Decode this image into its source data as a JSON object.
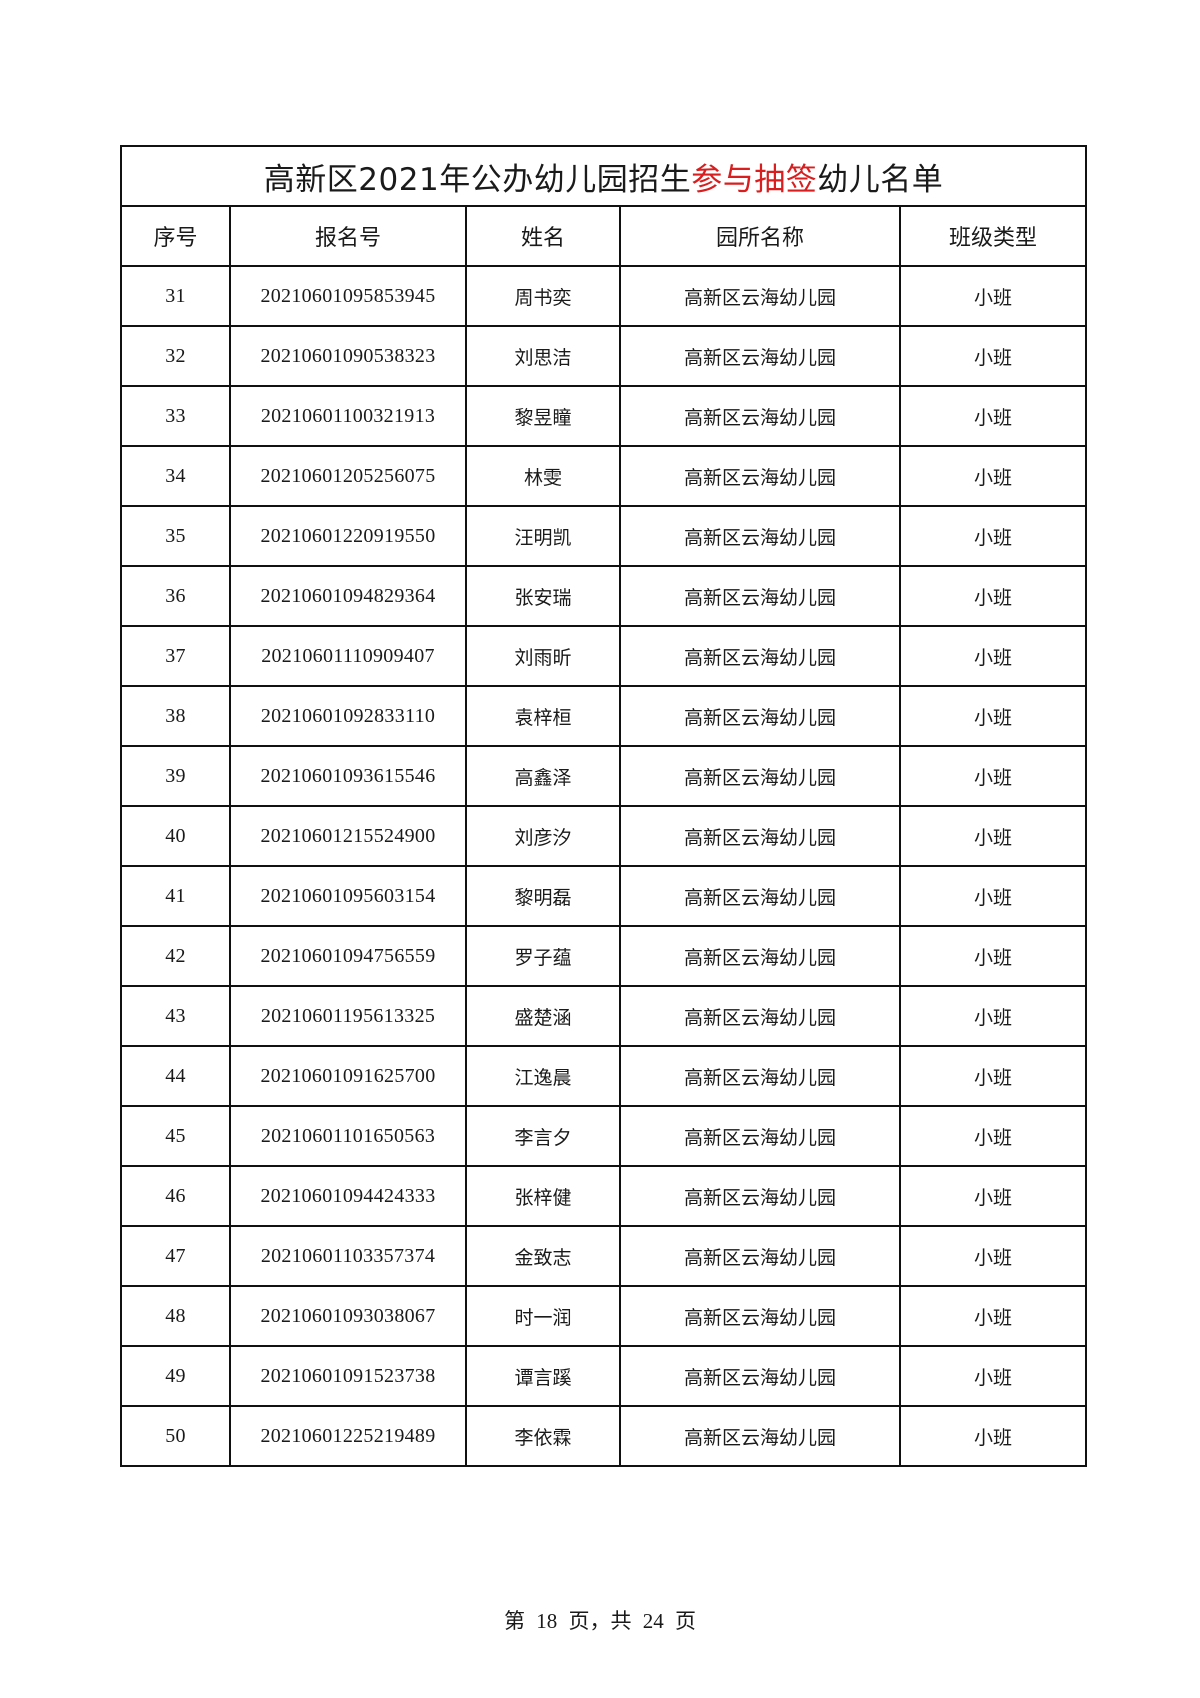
{
  "title": {
    "part1": "高新区2021年公办幼儿园招生",
    "highlight": "参与抽签",
    "part2": "幼儿名单",
    "highlight_color": "#d81e1e"
  },
  "headers": [
    "序号",
    "报名号",
    "姓名",
    "园所名称",
    "班级类型"
  ],
  "rows": [
    [
      "31",
      "20210601095853945",
      "周书奕",
      "高新区云海幼儿园",
      "小班"
    ],
    [
      "32",
      "20210601090538323",
      "刘思洁",
      "高新区云海幼儿园",
      "小班"
    ],
    [
      "33",
      "20210601100321913",
      "黎昱瞳",
      "高新区云海幼儿园",
      "小班"
    ],
    [
      "34",
      "20210601205256075",
      "林雯",
      "高新区云海幼儿园",
      "小班"
    ],
    [
      "35",
      "20210601220919550",
      "汪明凯",
      "高新区云海幼儿园",
      "小班"
    ],
    [
      "36",
      "20210601094829364",
      "张安瑞",
      "高新区云海幼儿园",
      "小班"
    ],
    [
      "37",
      "20210601110909407",
      "刘雨昕",
      "高新区云海幼儿园",
      "小班"
    ],
    [
      "38",
      "20210601092833110",
      "袁梓桓",
      "高新区云海幼儿园",
      "小班"
    ],
    [
      "39",
      "20210601093615546",
      "高鑫泽",
      "高新区云海幼儿园",
      "小班"
    ],
    [
      "40",
      "20210601215524900",
      "刘彦汐",
      "高新区云海幼儿园",
      "小班"
    ],
    [
      "41",
      "20210601095603154",
      "黎明磊",
      "高新区云海幼儿园",
      "小班"
    ],
    [
      "42",
      "20210601094756559",
      "罗子蕴",
      "高新区云海幼儿园",
      "小班"
    ],
    [
      "43",
      "20210601195613325",
      "盛楚涵",
      "高新区云海幼儿园",
      "小班"
    ],
    [
      "44",
      "20210601091625700",
      "江逸晨",
      "高新区云海幼儿园",
      "小班"
    ],
    [
      "45",
      "20210601101650563",
      "李言夕",
      "高新区云海幼儿园",
      "小班"
    ],
    [
      "46",
      "20210601094424333",
      "张梓健",
      "高新区云海幼儿园",
      "小班"
    ],
    [
      "47",
      "20210601103357374",
      "金致志",
      "高新区云海幼儿园",
      "小班"
    ],
    [
      "48",
      "20210601093038067",
      "时一润",
      "高新区云海幼儿园",
      "小班"
    ],
    [
      "49",
      "20210601091523738",
      "谭言蹊",
      "高新区云海幼儿园",
      "小班"
    ],
    [
      "50",
      "20210601225219489",
      "李依霖",
      "高新区云海幼儿园",
      "小班"
    ]
  ],
  "footer": "第 18 页，共 24 页"
}
